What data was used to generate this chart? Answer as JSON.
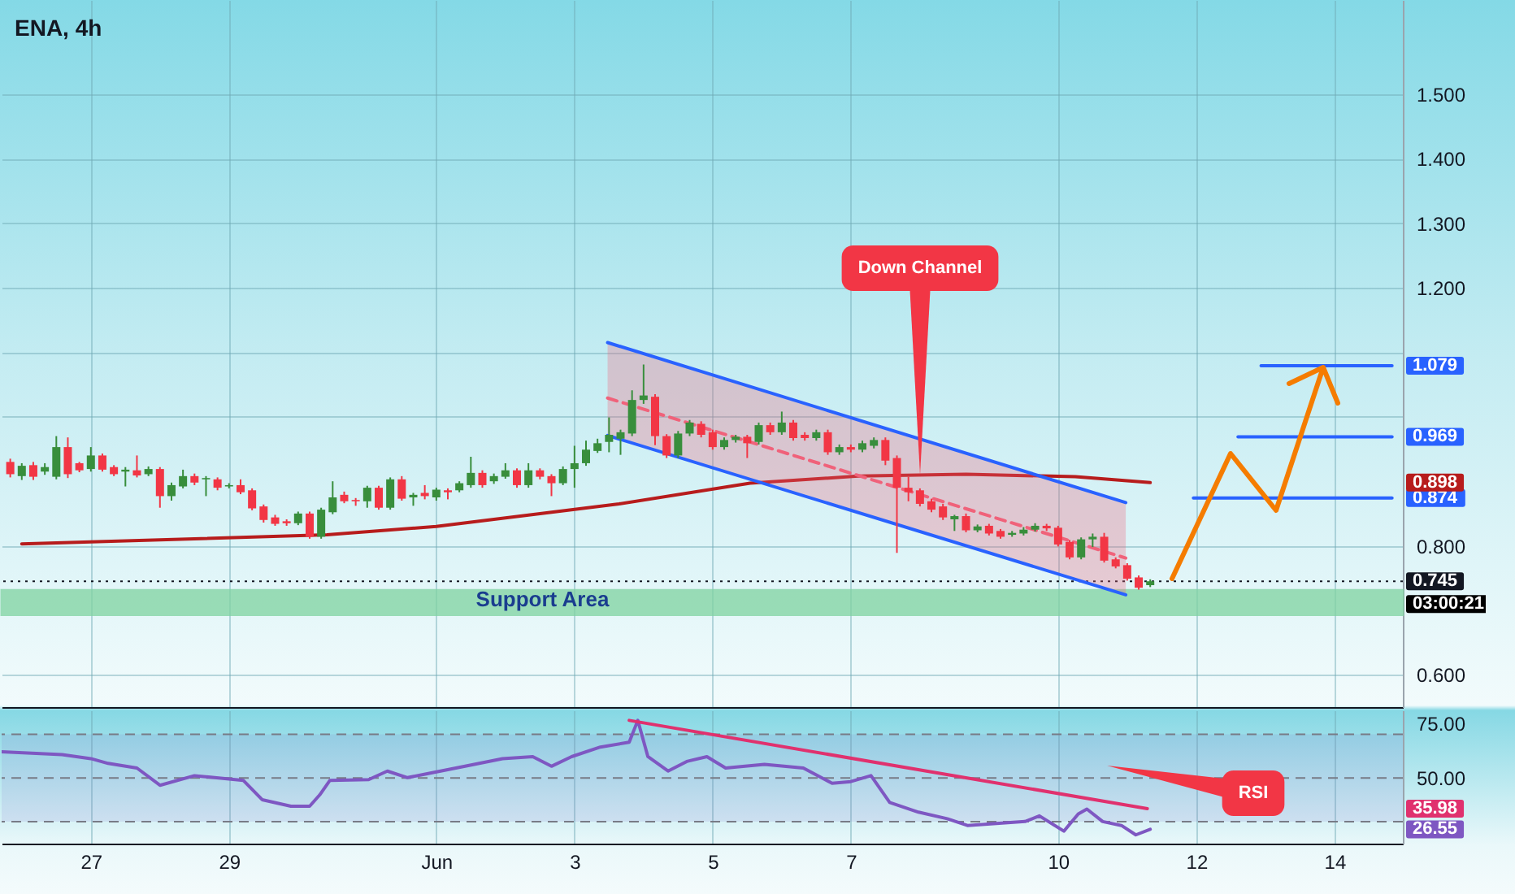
{
  "chart_data": [
    {
      "type": "candlestick",
      "title": "ENA, 4h",
      "x": [
        "--05-25T20:00",
        "--05-26T00:00",
        "--05-26T04:00",
        "--05-26T08:00",
        "--05-26T12:00",
        "--05-26T16:00",
        "--05-26T20:00",
        "--05-27T00:00",
        "--05-27T04:00",
        "--05-27T08:00",
        "--05-27T12:00",
        "--05-27T16:00",
        "--05-27T20:00",
        "--05-28T00:00",
        "--05-28T04:00",
        "--05-28T08:00",
        "--05-28T12:00",
        "--05-28T16:00",
        "--05-28T20:00",
        "--05-29T00:00",
        "--05-29T04:00",
        "--05-29T08:00",
        "--05-29T12:00",
        "--05-29T16:00",
        "--05-29T20:00",
        "--05-30T00:00",
        "--05-30T04:00",
        "--05-30T08:00",
        "--05-30T12:00",
        "--05-30T16:00",
        "--05-30T20:00",
        "--05-31T00:00",
        "--05-31T04:00",
        "--05-31T08:00",
        "--05-31T12:00",
        "--05-31T16:00",
        "--05-31T20:00",
        "--06-01T00:00",
        "--06-01T04:00",
        "--06-01T08:00",
        "--06-01T12:00",
        "--06-01T16:00",
        "--06-01T20:00",
        "--06-02T00:00",
        "--06-02T04:00",
        "--06-02T08:00",
        "--06-02T12:00",
        "--06-02T16:00",
        "--06-02T20:00",
        "--06-03T00:00",
        "--06-03T04:00",
        "--06-03T08:00",
        "--06-03T12:00",
        "--06-03T16:00",
        "--06-03T20:00",
        "--06-04T00:00",
        "--06-04T04:00",
        "--06-04T08:00",
        "--06-04T12:00",
        "--06-04T16:00",
        "--06-04T20:00",
        "--06-05T00:00",
        "--06-05T04:00",
        "--06-05T08:00",
        "--06-05T12:00",
        "--06-05T16:00",
        "--06-05T20:00",
        "--06-06T00:00",
        "--06-06T04:00",
        "--06-06T08:00",
        "--06-06T12:00",
        "--06-06T16:00",
        "--06-06T20:00",
        "--06-07T00:00",
        "--06-07T04:00",
        "--06-07T08:00",
        "--06-07T12:00",
        "--06-07T16:00",
        "--06-07T20:00",
        "--06-08T00:00",
        "--06-08T04:00",
        "--06-08T08:00",
        "--06-08T12:00",
        "--06-08T16:00",
        "--06-08T20:00",
        "--06-09T00:00",
        "--06-09T04:00",
        "--06-09T08:00",
        "--06-09T12:00",
        "--06-09T16:00",
        "--06-09T20:00",
        "--06-10T00:00",
        "--06-10T04:00",
        "--06-10T08:00",
        "--06-10T12:00",
        "--06-10T16:00",
        "--06-10T20:00",
        "--06-11T00:00",
        "--06-11T04:00",
        "--06-11T08:00"
      ],
      "ohlc": [
        [
          0.93,
          0.935,
          0.906,
          0.911
        ],
        [
          0.908,
          0.928,
          0.902,
          0.924
        ],
        [
          0.925,
          0.93,
          0.902,
          0.907
        ],
        [
          0.915,
          0.928,
          0.91,
          0.922
        ],
        [
          0.907,
          0.97,
          0.903,
          0.953
        ],
        [
          0.953,
          0.968,
          0.905,
          0.911
        ],
        [
          0.928,
          0.93,
          0.914,
          0.917
        ],
        [
          0.919,
          0.953,
          0.915,
          0.94
        ],
        [
          0.94,
          0.943,
          0.915,
          0.918
        ],
        [
          0.922,
          0.925,
          0.908,
          0.911
        ],
        [
          0.915,
          0.922,
          0.892,
          0.918
        ],
        [
          0.917,
          0.94,
          0.906,
          0.909
        ],
        [
          0.911,
          0.923,
          0.908,
          0.919
        ],
        [
          0.919,
          0.922,
          0.859,
          0.877
        ],
        [
          0.877,
          0.898,
          0.87,
          0.894
        ],
        [
          0.892,
          0.918,
          0.889,
          0.908
        ],
        [
          0.908,
          0.912,
          0.894,
          0.898
        ],
        [
          0.903,
          0.908,
          0.877,
          0.905
        ],
        [
          0.903,
          0.906,
          0.886,
          0.89
        ],
        [
          0.892,
          0.897,
          0.889,
          0.894
        ],
        [
          0.894,
          0.903,
          0.88,
          0.883
        ],
        [
          0.886,
          0.889,
          0.855,
          0.858
        ],
        [
          0.861,
          0.864,
          0.836,
          0.84
        ],
        [
          0.844,
          0.848,
          0.831,
          0.834
        ],
        [
          0.838,
          0.841,
          0.831,
          0.835
        ],
        [
          0.835,
          0.853,
          0.832,
          0.85
        ],
        [
          0.85,
          0.853,
          0.811,
          0.814
        ],
        [
          0.814,
          0.859,
          0.811,
          0.856
        ],
        [
          0.852,
          0.9,
          0.849,
          0.875
        ],
        [
          0.879,
          0.884,
          0.866,
          0.869
        ],
        [
          0.871,
          0.874,
          0.862,
          0.869
        ],
        [
          0.869,
          0.893,
          0.859,
          0.89
        ],
        [
          0.89,
          0.893,
          0.856,
          0.859
        ],
        [
          0.859,
          0.906,
          0.856,
          0.903
        ],
        [
          0.903,
          0.908,
          0.87,
          0.873
        ],
        [
          0.875,
          0.882,
          0.862,
          0.879
        ],
        [
          0.882,
          0.894,
          0.872,
          0.877
        ],
        [
          0.875,
          0.89,
          0.87,
          0.887
        ],
        [
          0.886,
          0.889,
          0.872,
          0.883
        ],
        [
          0.886,
          0.9,
          0.883,
          0.897
        ],
        [
          0.894,
          0.938,
          0.89,
          0.913
        ],
        [
          0.913,
          0.917,
          0.89,
          0.894
        ],
        [
          0.9,
          0.912,
          0.896,
          0.908
        ],
        [
          0.907,
          0.928,
          0.904,
          0.917
        ],
        [
          0.917,
          0.92,
          0.89,
          0.894
        ],
        [
          0.894,
          0.928,
          0.89,
          0.917
        ],
        [
          0.917,
          0.92,
          0.903,
          0.907
        ],
        [
          0.908,
          0.911,
          0.877,
          0.897
        ],
        [
          0.897,
          0.923,
          0.894,
          0.919
        ],
        [
          0.919,
          0.955,
          0.89,
          0.928
        ],
        [
          0.928,
          0.963,
          0.924,
          0.949
        ],
        [
          0.947,
          0.966,
          0.944,
          0.959
        ],
        [
          0.961,
          0.999,
          0.945,
          0.972
        ],
        [
          0.966,
          0.98,
          0.941,
          0.976
        ],
        [
          0.974,
          1.041,
          0.97,
          1.026
        ],
        [
          1.026,
          1.081,
          1.02,
          1.033
        ],
        [
          1.031,
          1.035,
          0.956,
          0.97
        ],
        [
          0.97,
          0.973,
          0.936,
          0.94
        ],
        [
          0.94,
          0.978,
          0.936,
          0.974
        ],
        [
          0.974,
          0.995,
          0.97,
          0.991
        ],
        [
          0.989,
          0.993,
          0.968,
          0.972
        ],
        [
          0.976,
          0.98,
          0.949,
          0.953
        ],
        [
          0.953,
          0.968,
          0.949,
          0.964
        ],
        [
          0.964,
          0.972,
          0.96,
          0.969
        ],
        [
          0.969,
          0.972,
          0.936,
          0.959
        ],
        [
          0.961,
          0.991,
          0.957,
          0.987
        ],
        [
          0.987,
          0.991,
          0.972,
          0.976
        ],
        [
          0.976,
          1.008,
          0.972,
          0.991
        ],
        [
          0.991,
          0.995,
          0.963,
          0.967
        ],
        [
          0.972,
          0.976,
          0.963,
          0.967
        ],
        [
          0.967,
          0.98,
          0.963,
          0.976
        ],
        [
          0.976,
          0.98,
          0.941,
          0.945
        ],
        [
          0.945,
          0.957,
          0.941,
          0.953
        ],
        [
          0.953,
          0.957,
          0.945,
          0.949
        ],
        [
          0.949,
          0.963,
          0.945,
          0.959
        ],
        [
          0.955,
          0.968,
          0.951,
          0.964
        ],
        [
          0.964,
          0.968,
          0.925,
          0.932
        ],
        [
          0.936,
          0.94,
          0.789,
          0.89
        ],
        [
          0.89,
          0.907,
          0.869,
          0.883
        ],
        [
          0.886,
          0.889,
          0.861,
          0.865
        ],
        [
          0.869,
          0.873,
          0.852,
          0.856
        ],
        [
          0.861,
          0.865,
          0.84,
          0.844
        ],
        [
          0.841,
          0.848,
          0.823,
          0.846
        ],
        [
          0.846,
          0.85,
          0.821,
          0.824
        ],
        [
          0.824,
          0.833,
          0.821,
          0.83
        ],
        [
          0.831,
          0.834,
          0.816,
          0.819
        ],
        [
          0.823,
          0.826,
          0.811,
          0.814
        ],
        [
          0.817,
          0.823,
          0.814,
          0.82
        ],
        [
          0.819,
          0.829,
          0.816,
          0.825
        ],
        [
          0.825,
          0.835,
          0.822,
          0.831
        ],
        [
          0.831,
          0.834,
          0.823,
          0.827
        ],
        [
          0.828,
          0.831,
          0.799,
          0.802
        ],
        [
          0.806,
          0.809,
          0.779,
          0.782
        ],
        [
          0.782,
          0.813,
          0.779,
          0.81
        ],
        [
          0.81,
          0.819,
          0.798,
          0.814
        ],
        [
          0.814,
          0.82,
          0.774,
          0.777
        ],
        [
          0.779,
          0.782,
          0.765,
          0.768
        ],
        [
          0.77,
          0.773,
          0.746,
          0.749
        ],
        [
          0.751,
          0.754,
          0.732,
          0.735
        ],
        [
          0.739,
          0.748,
          0.736,
          0.745
        ]
      ],
      "colors": [
        "#f23645",
        "#388e3c",
        "#f23645",
        "#388e3c",
        "#388e3c",
        "#f23645",
        "#f23645",
        "#388e3c",
        "#f23645",
        "#f23645",
        "#388e3c",
        "#f23645",
        "#388e3c",
        "#f23645",
        "#388e3c",
        "#388e3c",
        "#f23645",
        "#388e3c",
        "#f23645",
        "#388e3c",
        "#f23645",
        "#f23645",
        "#f23645",
        "#f23645",
        "#f23645",
        "#388e3c",
        "#f23645",
        "#388e3c",
        "#388e3c",
        "#f23645",
        "#f23645",
        "#388e3c",
        "#f23645",
        "#388e3c",
        "#f23645",
        "#388e3c",
        "#f23645",
        "#388e3c",
        "#f23645",
        "#388e3c",
        "#388e3c",
        "#f23645",
        "#388e3c",
        "#388e3c",
        "#f23645",
        "#388e3c",
        "#f23645",
        "#f23645",
        "#388e3c",
        "#388e3c",
        "#388e3c",
        "#388e3c",
        "#388e3c",
        "#388e3c",
        "#388e3c",
        "#388e3c",
        "#f23645",
        "#f23645",
        "#388e3c",
        "#388e3c",
        "#f23645",
        "#f23645",
        "#388e3c",
        "#388e3c",
        "#f23645",
        "#388e3c",
        "#f23645",
        "#388e3c",
        "#f23645",
        "#f23645",
        "#388e3c",
        "#f23645",
        "#388e3c",
        "#f23645",
        "#388e3c",
        "#388e3c",
        "#f23645",
        "#f23645",
        "#f23645",
        "#f23645",
        "#f23645",
        "#f23645",
        "#388e3c",
        "#f23645",
        "#388e3c",
        "#f23645",
        "#f23645",
        "#388e3c",
        "#388e3c",
        "#388e3c",
        "#f23645",
        "#f23645",
        "#f23645",
        "#388e3c",
        "#388e3c",
        "#f23645",
        "#f23645",
        "#f23645",
        "#f23645",
        "#388e3c"
      ],
      "series": [
        {
          "type": "line",
          "color": "#b71c1c",
          "x": [
            "--05-26T00:00",
            "--05-30T10:00",
            "--06-01T00:00",
            "--06-03T15:30",
            "--06-05T13:00",
            "--06-07T02:30",
            "--06-08T16:00",
            "--06-10T06:00",
            "--06-11T08:00"
          ],
          "values": [
            0.803,
            0.817,
            0.83,
            0.865,
            0.897,
            0.908,
            0.911,
            0.907,
            0.898
          ]
        },
        {
          "type": "line",
          "color": "#f0627a",
          "line_style": "dashed",
          "x": [
            "--06-03T11:30",
            "--06-10T23:30"
          ],
          "values": [
            1.029,
            0.781
          ],
          "lower": [
            0.971,
            0.724
          ],
          "upper": [
            1.115,
            0.867
          ]
        },
        {
          "type": "line",
          "color": "#2962ff",
          "x": [
            "--06-03T11:30",
            "--06-10T23:30"
          ],
          "values": [
            1.115,
            0.867
          ]
        },
        {
          "type": "line",
          "color": "#2962ff",
          "x": [
            "--06-03T11:30",
            "--06-10T23:30"
          ],
          "values": [
            0.971,
            0.724
          ]
        },
        {
          "type": "line",
          "color": "#2962ff",
          "x": [
            "--06-12T22:30",
            "--06-14T20:00"
          ],
          "values": [
            1.079,
            1.079
          ]
        },
        {
          "type": "line",
          "color": "#2962ff",
          "x": [
            "--06-12T14:30",
            "--06-14T20:00"
          ],
          "values": [
            0.969,
            0.969
          ]
        },
        {
          "type": "line",
          "color": "#2962ff",
          "x": [
            "--06-11T23:00",
            "--06-14T20:00"
          ],
          "values": [
            0.874,
            0.874
          ]
        }
      ],
      "bands": [
        {
          "axis": "y",
          "from": 0.693,
          "to": 0.731,
          "label": "Support Area",
          "color": "#7fd3a0"
        }
      ],
      "ref_lines": [
        {
          "axis": "y",
          "value": 0.745,
          "label": "0.745",
          "color": "#131722",
          "line_style": "dotted"
        }
      ],
      "annotations": [
        "Down Channel",
        "03:00:21",
        {
          "text": "1.079",
          "y": 1.079
        },
        {
          "text": "0.969",
          "y": 0.969
        },
        {
          "text": "0.898",
          "y": 0.898
        },
        {
          "text": "0.874",
          "y": 0.874
        }
      ],
      "xlim": [
        "--05-25T17:00",
        "--06-14T23:45"
      ],
      "xticks": [
        {
          "value": "--05-27",
          "label": "27"
        },
        {
          "value": "--05-29",
          "label": "29"
        },
        {
          "value": "--06-01",
          "label": "Jun"
        },
        {
          "value": "--06-03",
          "label": "3"
        },
        {
          "value": "--06-05",
          "label": "5"
        },
        {
          "value": "--06-07",
          "label": "7"
        },
        {
          "value": "--06-10",
          "label": "10"
        },
        {
          "value": "--06-12",
          "label": "12"
        },
        {
          "value": "--06-14",
          "label": "14"
        }
      ],
      "ylim": [
        0.55,
        1.646
      ],
      "yticks": [
        {
          "value": 0.6,
          "label": "0.600"
        },
        {
          "value": 0.8,
          "label": "0.800"
        },
        {
          "value": 1.0,
          "label": null
        },
        {
          "value": 1.1,
          "label": null
        },
        {
          "value": 1.2,
          "label": "1.200"
        },
        {
          "value": 1.3,
          "label": "1.300"
        },
        {
          "value": 1.4,
          "label": "1.400"
        },
        {
          "value": 1.5,
          "label": "1.500"
        }
      ],
      "grid": true,
      "tick_labels": "y"
    },
    {
      "type": "line",
      "series": [
        {
          "color": "#7e57c2",
          "x": [
            "--05-25T17:00",
            "--05-26T14:00",
            "--05-27T00:00",
            "--05-27T06:00",
            "--05-27T16:00",
            "--05-28T00:00",
            "--05-28T12:00",
            "--05-29T05:00",
            "--05-29T11:30",
            "--05-29T21:30",
            "--05-30T04:00",
            "--05-30T07:30",
            "--05-30T11:00",
            "--05-31T00:30",
            "--05-31T07:00",
            "--05-31T14:00",
            "--05-31T20:30",
            "--06-01T10:00",
            "--06-01T23:00",
            "--06-02T09:30",
            "--06-02T16:00",
            "--06-02T23:00",
            "--06-03T09:00",
            "--06-03T19:00",
            "--06-03T22:00",
            "--06-04T01:30",
            "--06-04T08:30",
            "--06-04T15:00",
            "--06-04T22:00",
            "--06-05T04:30",
            "--06-05T18:00",
            "--06-06T07:30",
            "--06-06T17:30",
            "--06-07T00:00",
            "--06-07T07:00",
            "--06-07T13:30",
            "--06-07T23:30",
            "--06-08T09:30",
            "--06-08T16:30",
            "--06-09T02:30",
            "--06-09T12:30",
            "--06-09T17:30",
            "--06-10T02:00",
            "--06-10T07:00",
            "--06-10T10:00",
            "--06-10T15:30",
            "--06-10T22:00",
            "--06-11T03:00",
            "--06-11T08:00"
          ],
          "values": [
            62.0,
            60.7,
            58.9,
            56.7,
            54.6,
            46.7,
            51.1,
            48.9,
            40.1,
            37.1,
            37.1,
            42.3,
            48.9,
            49.3,
            53.2,
            50.2,
            51.9,
            55.4,
            58.9,
            59.8,
            55.4,
            59.8,
            64.2,
            66.4,
            76.4,
            59.8,
            53.2,
            57.6,
            59.8,
            54.6,
            56.3,
            54.6,
            47.6,
            48.4,
            51.1,
            38.8,
            34.4,
            31.4,
            28.3,
            29.2,
            30.1,
            32.7,
            25.7,
            33.6,
            35.8,
            30.1,
            28.3,
            24.0,
            26.55
          ]
        },
        {
          "color": "#e0316e",
          "x": [
            "--06-03T19:00",
            "--06-11T07:00"
          ],
          "values": [
            76.4,
            35.98
          ]
        }
      ],
      "bands": [
        {
          "axis": "y",
          "from": 30,
          "to": 70,
          "color": "#7e57c2"
        }
      ],
      "ref_lines": [
        {
          "axis": "y",
          "value": 70,
          "color": "#787b86",
          "line_style": "dashed"
        },
        {
          "axis": "y",
          "value": 50,
          "color": "#787b86",
          "line_style": "dashed"
        },
        {
          "axis": "y",
          "value": 30,
          "color": "#787b86",
          "line_style": "dashed"
        }
      ],
      "annotations": [
        "RSI",
        {
          "text": "35.98",
          "y": 35.98
        },
        {
          "text": "26.55",
          "y": 26.55
        }
      ],
      "xlim": [
        "--05-25T17:00",
        "--06-14T23:45"
      ],
      "xticks": [
        {
          "value": "--05-27",
          "label": "27"
        },
        {
          "value": "--05-29",
          "label": "29"
        },
        {
          "value": "--06-01",
          "label": "Jun"
        },
        {
          "value": "--06-03",
          "label": "3"
        },
        {
          "value": "--06-05",
          "label": "5"
        },
        {
          "value": "--06-07",
          "label": "7"
        },
        {
          "value": "--06-10",
          "label": "10"
        },
        {
          "value": "--06-12",
          "label": "12"
        },
        {
          "value": "--06-14",
          "label": "14"
        }
      ],
      "ylim": [
        20,
        81
      ],
      "yticks": [
        {
          "value": 75,
          "label": "75.00"
        },
        {
          "value": 50,
          "label": "50.00"
        }
      ],
      "grid": "x"
    }
  ]
}
